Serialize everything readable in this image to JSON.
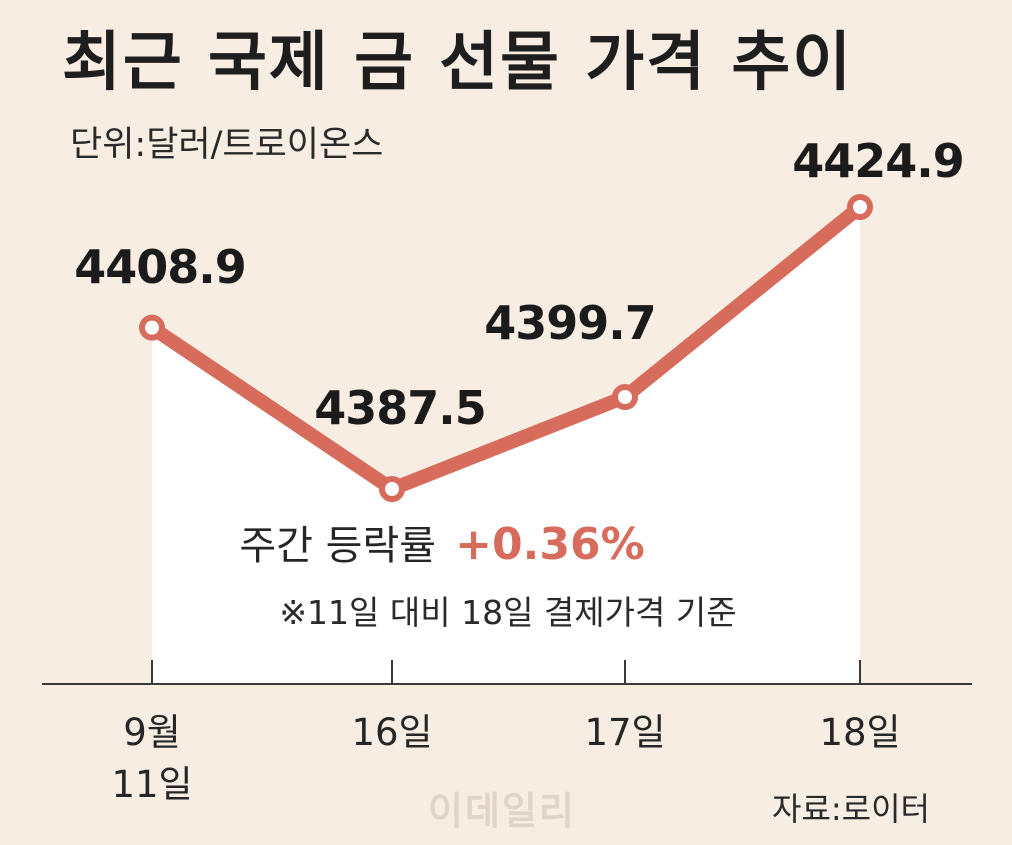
{
  "header": {
    "title": "최근 국제 금 선물 가격 추이",
    "unit": "단위:달러/트로이온스"
  },
  "chart_data": {
    "type": "line",
    "title": "최근 국제 금 선물 가격 추이",
    "ylabel": "단위:달러/트로이온스",
    "categories": [
      "9월\n11일",
      "16일",
      "17일",
      "18일"
    ],
    "values": [
      4408.9,
      4387.5,
      4399.7,
      4424.9
    ],
    "value_labels": [
      "4408.9",
      "4387.5",
      "4399.7",
      "4424.9"
    ],
    "annotation": {
      "prefix": "주간 등락률",
      "value": "+0.36%",
      "note": "※11일 대비 18일 결제가격 기준"
    },
    "colors": {
      "line": "#d86c5c",
      "area": "#ffffff",
      "background": "#f7ede2"
    },
    "grid": false
  },
  "footer": {
    "source": "자료:로이터",
    "watermark": "이데일리"
  }
}
